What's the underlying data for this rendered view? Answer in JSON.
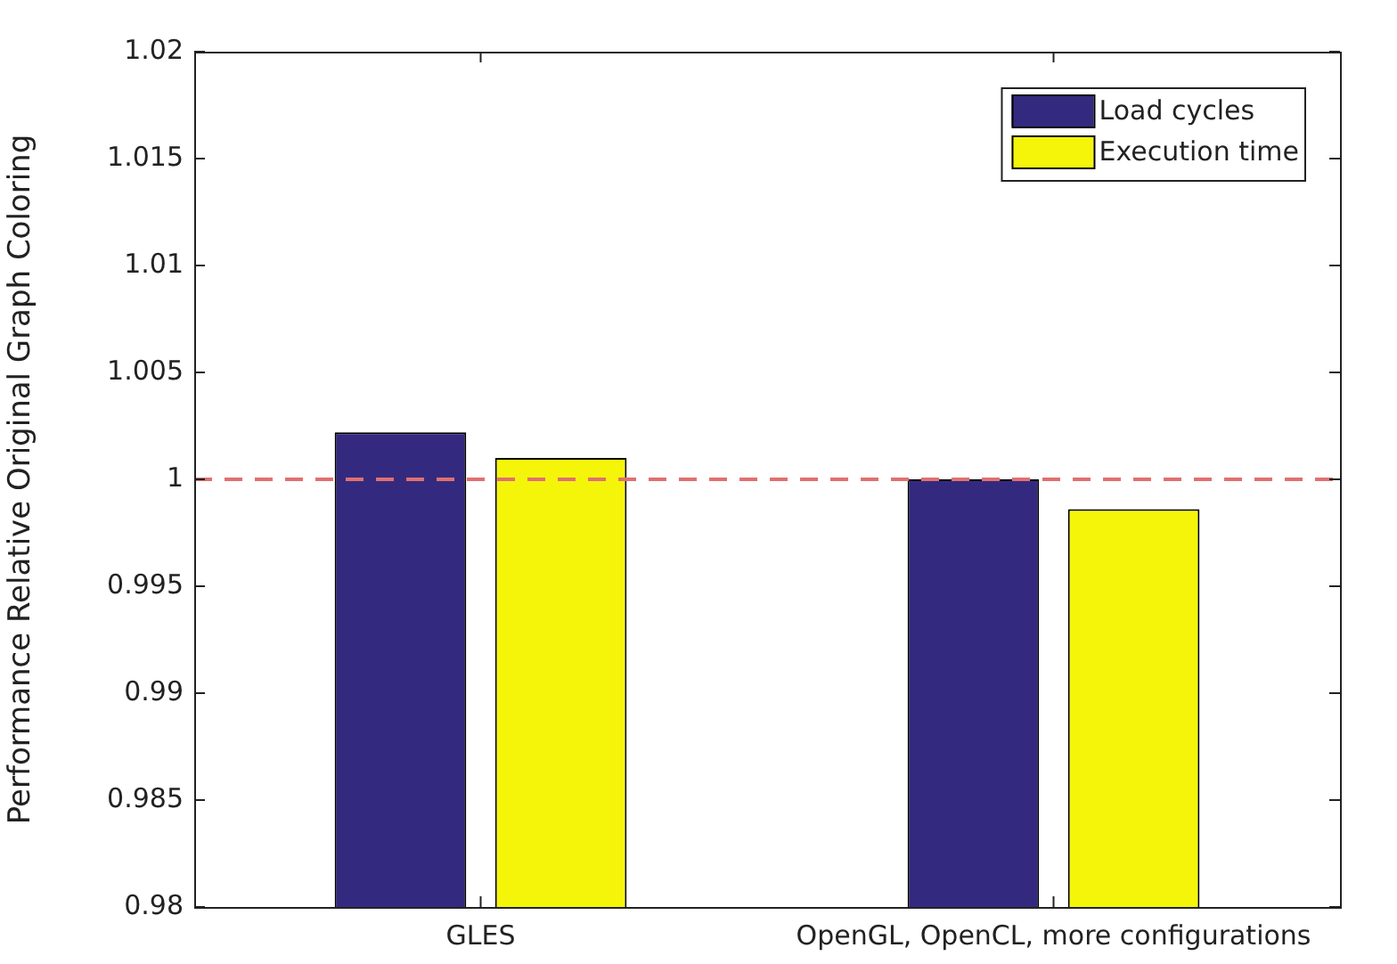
{
  "chart_data": {
    "type": "bar",
    "ylabel": "Performance Relative Original Graph Coloring",
    "categories": [
      "GLES",
      "OpenGL, OpenCL, more configurations"
    ],
    "series": [
      {
        "name": "Load cycles",
        "color": "#332a80",
        "values": [
          1.0022,
          1.0
        ]
      },
      {
        "name": "Execution time",
        "color": "#f5f50a",
        "values": [
          1.001,
          0.9986
        ]
      }
    ],
    "ylim": [
      0.98,
      1.02
    ],
    "yticks": [
      0.98,
      0.985,
      0.99,
      0.995,
      1,
      1.005,
      1.01,
      1.015,
      1.02
    ],
    "ref_lines": [
      {
        "axis": "y",
        "value": 1,
        "color": "#e07070",
        "line_style": "dashed"
      }
    ],
    "grid": false,
    "legend": "top right"
  }
}
